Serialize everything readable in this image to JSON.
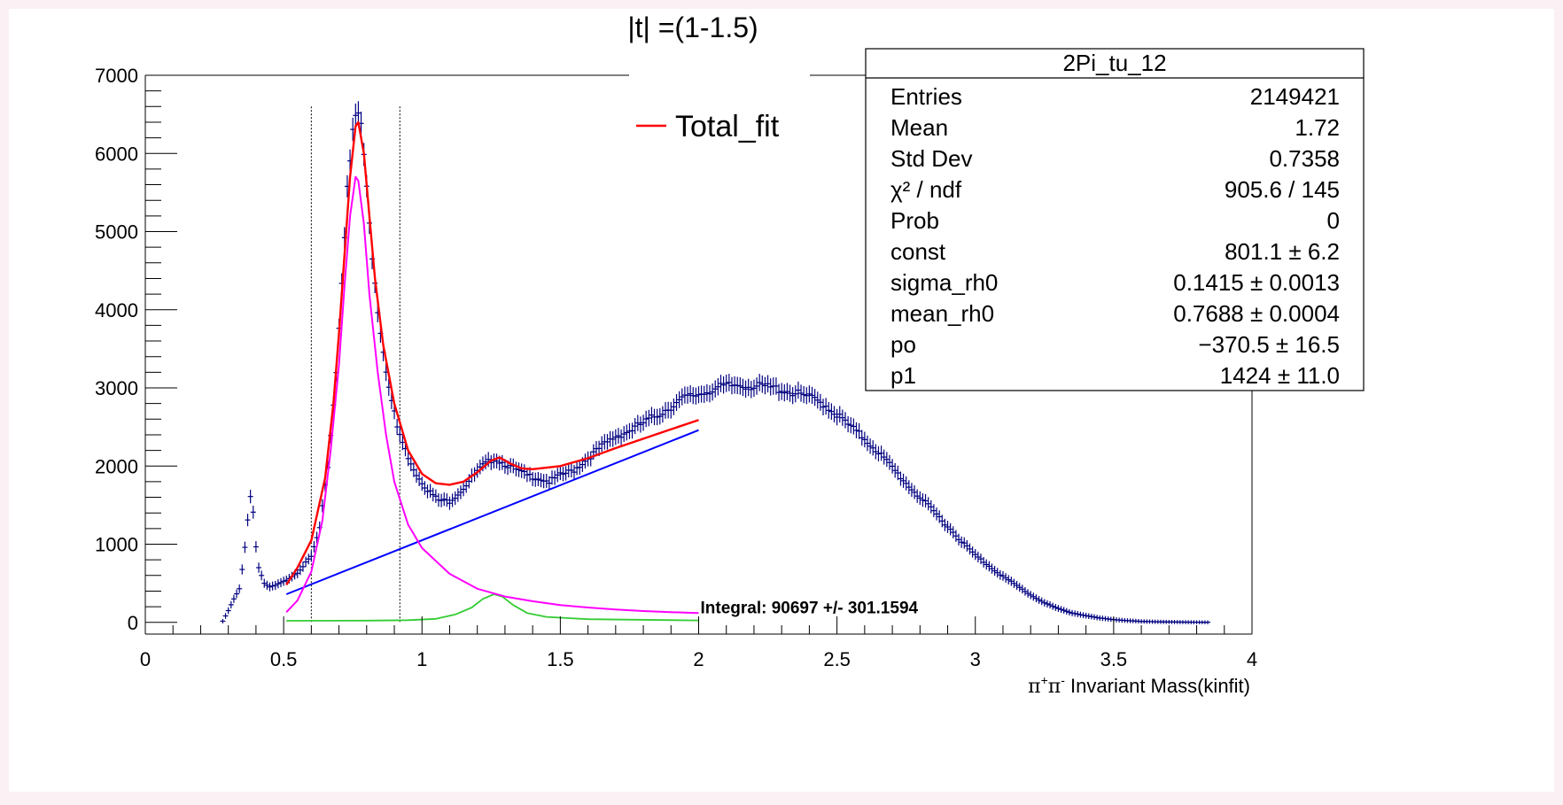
{
  "chart_data": {
    "type": "scatter",
    "title": "|t| =(1-1.5)",
    "xlabel": "π⁺π⁻ Invariant Mass(kinfit)",
    "xlabel_parts": {
      "pi1": "π",
      "sup1": "+",
      "pi2": "π",
      "sup2": "-",
      "rest": " Invariant Mass(kinfit)"
    },
    "ylabel": "",
    "xlim": [
      0,
      4
    ],
    "ylim": [
      -150,
      7000
    ],
    "x_ticks": [
      "0",
      "0.5",
      "1",
      "1.5",
      "2",
      "2.5",
      "3",
      "3.5",
      "4"
    ],
    "x_tick_values": [
      0,
      0.5,
      1,
      1.5,
      2,
      2.5,
      3,
      3.5,
      4
    ],
    "y_ticks": [
      "0",
      "1000",
      "2000",
      "3000",
      "4000",
      "5000",
      "6000",
      "7000"
    ],
    "y_tick_values": [
      0,
      1000,
      2000,
      3000,
      4000,
      5000,
      6000,
      7000
    ],
    "legend": {
      "entry": "Total_fit",
      "color": "#ff0000",
      "placement": "top-center"
    },
    "stats_box": {
      "title": "2Pi_tu_12",
      "placement": "top-right",
      "rows": [
        {
          "label": "Entries",
          "value": "2149421"
        },
        {
          "label": "Mean",
          "value": "1.72"
        },
        {
          "label": "Std Dev",
          "value": "0.7358"
        },
        {
          "label": "χ² / ndf",
          "value": "905.6 / 145"
        },
        {
          "label": "Prob",
          "value": "0"
        },
        {
          "label": "const",
          "value": "801.1 ± 6.2"
        },
        {
          "label": "sigma_rh0",
          "value": "0.1415 ± 0.0013"
        },
        {
          "label": "mean_rh0",
          "value": "0.7688 ± 0.0004"
        },
        {
          "label": "po",
          "value": "−370.5 ± 16.5"
        },
        {
          "label": "p1",
          "value": "1424 ± 11.0"
        }
      ]
    },
    "annotation": {
      "text": "Integral: 90697 +/- 301.1594",
      "x": 2.0,
      "y": 130
    },
    "vertical_lines": [
      {
        "x": 0.6,
        "y_top": 6600,
        "style": "dotted"
      },
      {
        "x": 0.92,
        "y_top": 6600,
        "style": "dotted"
      }
    ],
    "colors": {
      "data": "#000080",
      "total_fit": "#ff0000",
      "rho_component": "#ff00ff",
      "f2_component": "#33cc33",
      "background": "#0000ff"
    },
    "data_anchor_points": [
      [
        0.28,
        15
      ],
      [
        0.3,
        150
      ],
      [
        0.32,
        300
      ],
      [
        0.34,
        430
      ],
      [
        0.355,
        800
      ],
      [
        0.365,
        1120
      ],
      [
        0.375,
        1500
      ],
      [
        0.385,
        1720
      ],
      [
        0.395,
        1100
      ],
      [
        0.41,
        700
      ],
      [
        0.43,
        500
      ],
      [
        0.45,
        450
      ],
      [
        0.47,
        470
      ],
      [
        0.5,
        520
      ],
      [
        0.55,
        640
      ],
      [
        0.6,
        840
      ],
      [
        0.63,
        1200
      ],
      [
        0.66,
        2000
      ],
      [
        0.69,
        3200
      ],
      [
        0.71,
        4400
      ],
      [
        0.73,
        5500
      ],
      [
        0.75,
        6250
      ],
      [
        0.765,
        6580
      ],
      [
        0.78,
        6350
      ],
      [
        0.8,
        5600
      ],
      [
        0.82,
        4700
      ],
      [
        0.84,
        4000
      ],
      [
        0.86,
        3500
      ],
      [
        0.88,
        3000
      ],
      [
        0.91,
        2500
      ],
      [
        0.94,
        2200
      ],
      [
        0.98,
        1900
      ],
      [
        1.02,
        1700
      ],
      [
        1.06,
        1560
      ],
      [
        1.1,
        1550
      ],
      [
        1.14,
        1680
      ],
      [
        1.18,
        1850
      ],
      [
        1.22,
        2000
      ],
      [
        1.26,
        2100
      ],
      [
        1.3,
        2030
      ],
      [
        1.34,
        1950
      ],
      [
        1.38,
        1880
      ],
      [
        1.42,
        1850
      ],
      [
        1.46,
        1800
      ],
      [
        1.5,
        1880
      ],
      [
        1.55,
        1950
      ],
      [
        1.6,
        2100
      ],
      [
        1.65,
        2250
      ],
      [
        1.7,
        2380
      ],
      [
        1.75,
        2450
      ],
      [
        1.8,
        2550
      ],
      [
        1.85,
        2650
      ],
      [
        1.9,
        2760
      ],
      [
        1.95,
        2870
      ],
      [
        2.0,
        2920
      ],
      [
        2.05,
        2980
      ],
      [
        2.1,
        3020
      ],
      [
        2.15,
        3040
      ],
      [
        2.2,
        3020
      ],
      [
        2.25,
        3010
      ],
      [
        2.3,
        2980
      ],
      [
        2.35,
        2930
      ],
      [
        2.4,
        2880
      ],
      [
        2.45,
        2800
      ],
      [
        2.5,
        2660
      ],
      [
        2.55,
        2500
      ],
      [
        2.6,
        2350
      ],
      [
        2.65,
        2180
      ],
      [
        2.7,
        1980
      ],
      [
        2.75,
        1780
      ],
      [
        2.8,
        1600
      ],
      [
        2.85,
        1420
      ],
      [
        2.9,
        1230
      ],
      [
        2.95,
        1040
      ],
      [
        3.0,
        860
      ],
      [
        3.05,
        720
      ],
      [
        3.1,
        590
      ],
      [
        3.15,
        470
      ],
      [
        3.2,
        350
      ],
      [
        3.25,
        250
      ],
      [
        3.3,
        175
      ],
      [
        3.35,
        120
      ],
      [
        3.4,
        85
      ],
      [
        3.45,
        55
      ],
      [
        3.5,
        35
      ],
      [
        3.55,
        22
      ],
      [
        3.6,
        12
      ],
      [
        3.65,
        8
      ],
      [
        3.7,
        5
      ],
      [
        3.75,
        3
      ],
      [
        3.8,
        2
      ],
      [
        3.85,
        1
      ]
    ],
    "total_fit": [
      [
        0.51,
        480
      ],
      [
        0.55,
        700
      ],
      [
        0.6,
        1050
      ],
      [
        0.65,
        1850
      ],
      [
        0.68,
        2800
      ],
      [
        0.7,
        3700
      ],
      [
        0.72,
        4700
      ],
      [
        0.74,
        5700
      ],
      [
        0.76,
        6350
      ],
      [
        0.77,
        6400
      ],
      [
        0.79,
        6000
      ],
      [
        0.81,
        5200
      ],
      [
        0.83,
        4400
      ],
      [
        0.86,
        3550
      ],
      [
        0.9,
        2800
      ],
      [
        0.95,
        2200
      ],
      [
        1.0,
        1900
      ],
      [
        1.05,
        1780
      ],
      [
        1.1,
        1760
      ],
      [
        1.15,
        1800
      ],
      [
        1.2,
        1920
      ],
      [
        1.25,
        2070
      ],
      [
        1.28,
        2110
      ],
      [
        1.32,
        2030
      ],
      [
        1.36,
        1970
      ],
      [
        1.4,
        1960
      ],
      [
        1.5,
        2000
      ],
      [
        1.6,
        2100
      ],
      [
        1.7,
        2230
      ],
      [
        1.8,
        2350
      ],
      [
        1.9,
        2470
      ],
      [
        2.0,
        2590
      ]
    ],
    "rho_component": [
      [
        0.51,
        130
      ],
      [
        0.55,
        280
      ],
      [
        0.6,
        650
      ],
      [
        0.64,
        1300
      ],
      [
        0.67,
        2200
      ],
      [
        0.7,
        3300
      ],
      [
        0.72,
        4300
      ],
      [
        0.74,
        5200
      ],
      [
        0.76,
        5700
      ],
      [
        0.77,
        5650
      ],
      [
        0.79,
        5100
      ],
      [
        0.81,
        4200
      ],
      [
        0.84,
        3200
      ],
      [
        0.87,
        2400
      ],
      [
        0.9,
        1800
      ],
      [
        0.95,
        1250
      ],
      [
        1.0,
        950
      ],
      [
        1.1,
        620
      ],
      [
        1.2,
        430
      ],
      [
        1.3,
        330
      ],
      [
        1.4,
        270
      ],
      [
        1.5,
        220
      ],
      [
        1.6,
        190
      ],
      [
        1.7,
        165
      ],
      [
        1.8,
        145
      ],
      [
        1.9,
        130
      ],
      [
        2.0,
        120
      ]
    ],
    "f2_component": [
      [
        0.51,
        20
      ],
      [
        0.8,
        22
      ],
      [
        0.95,
        28
      ],
      [
        1.05,
        45
      ],
      [
        1.12,
        100
      ],
      [
        1.18,
        190
      ],
      [
        1.22,
        300
      ],
      [
        1.26,
        360
      ],
      [
        1.29,
        330
      ],
      [
        1.33,
        220
      ],
      [
        1.38,
        120
      ],
      [
        1.45,
        70
      ],
      [
        1.6,
        40
      ],
      [
        2.0,
        25
      ]
    ],
    "background_line": [
      [
        0.51,
        360
      ],
      [
        2.0,
        2460
      ]
    ]
  }
}
